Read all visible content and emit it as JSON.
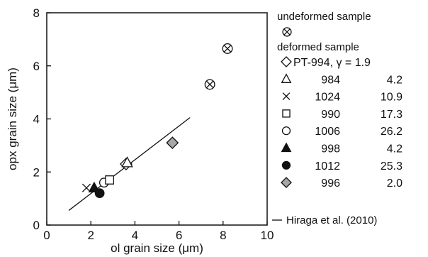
{
  "chart_data": {
    "type": "scatter",
    "xlabel": "ol grain size (μm)",
    "ylabel": "opx grain size (μm)",
    "xlim": [
      0,
      10
    ],
    "ylim": [
      0,
      8
    ],
    "xticks": [
      "0",
      "2",
      "4",
      "6",
      "8",
      "10"
    ],
    "yticks": [
      "0",
      "2",
      "4",
      "6",
      "8"
    ],
    "grid": false,
    "legend_placement": "right",
    "undeformed": {
      "label": "undeformed sample",
      "marker": "circle-cross",
      "points": [
        [
          7.4,
          5.3
        ],
        [
          8.2,
          6.65
        ]
      ]
    },
    "deformed_label": "deformed sample",
    "series": [
      {
        "sample": "PT-994, γ = 1.9",
        "sample_id": "PT-994",
        "gamma": "",
        "marker": "diamond-open",
        "points": [
          [
            3.6,
            2.3
          ]
        ]
      },
      {
        "sample": "984",
        "gamma": "4.2",
        "marker": "triangle-open",
        "points": [
          [
            3.65,
            2.35
          ]
        ]
      },
      {
        "sample": "1024",
        "gamma": "10.9",
        "marker": "cross",
        "points": [
          [
            1.8,
            1.4
          ]
        ]
      },
      {
        "sample": "990",
        "gamma": "17.3",
        "marker": "square-open",
        "points": [
          [
            2.85,
            1.7
          ]
        ]
      },
      {
        "sample": "1006",
        "gamma": "26.2",
        "marker": "circle-open",
        "points": [
          [
            2.6,
            1.6
          ]
        ]
      },
      {
        "sample": "998",
        "gamma": "4.2",
        "marker": "triangle-filled",
        "points": [
          [
            2.15,
            1.4
          ]
        ]
      },
      {
        "sample": "1012",
        "gamma": "25.3",
        "marker": "circle-filled",
        "points": [
          [
            2.4,
            1.2
          ]
        ]
      },
      {
        "sample": "996",
        "gamma": "2.0",
        "marker": "diamond-gray",
        "points": [
          [
            5.7,
            3.1
          ]
        ]
      }
    ],
    "fit_line": {
      "label": "Hiraga et al. (2010)",
      "x": [
        1.0,
        6.5
      ],
      "y": [
        0.55,
        4.05
      ]
    }
  }
}
